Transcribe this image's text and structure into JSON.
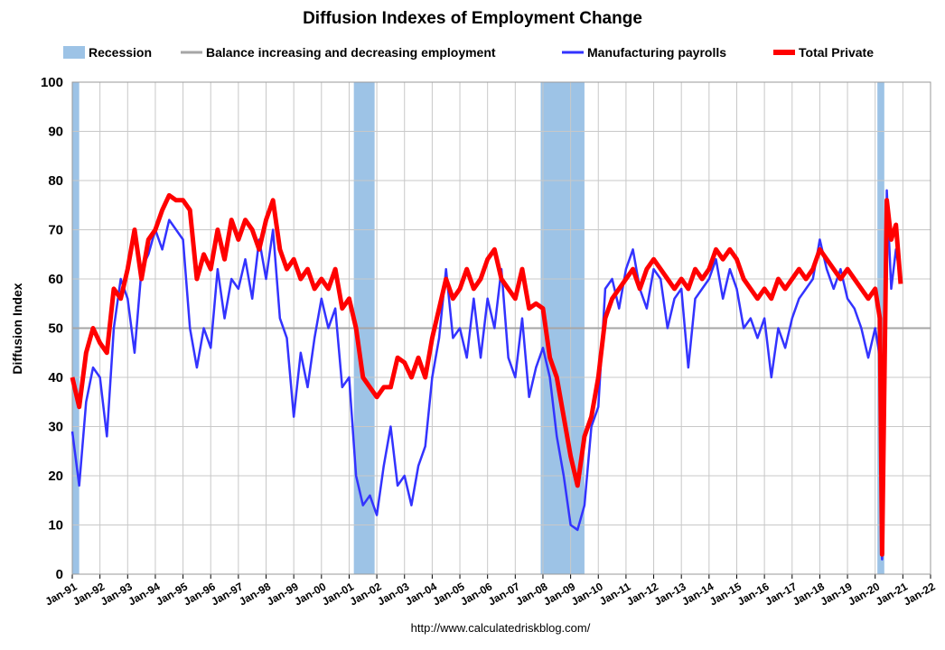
{
  "chart_data": {
    "type": "line",
    "title": "Diffusion Indexes of Employment Change",
    "ylabel": "Diffusion Index",
    "source": "http://www.calculatedriskblog.com/",
    "xlim": [
      1991,
      2022
    ],
    "xticks": [
      {
        "value": 1991,
        "label": "Jan-91"
      },
      {
        "value": 1992,
        "label": "Jan-92"
      },
      {
        "value": 1993,
        "label": "Jan-93"
      },
      {
        "value": 1994,
        "label": "Jan-94"
      },
      {
        "value": 1995,
        "label": "Jan-95"
      },
      {
        "value": 1996,
        "label": "Jan-96"
      },
      {
        "value": 1997,
        "label": "Jan-97"
      },
      {
        "value": 1998,
        "label": "Jan-98"
      },
      {
        "value": 1999,
        "label": "Jan-99"
      },
      {
        "value": 2000,
        "label": "Jan-00"
      },
      {
        "value": 2001,
        "label": "Jan-01"
      },
      {
        "value": 2002,
        "label": "Jan-02"
      },
      {
        "value": 2003,
        "label": "Jan-03"
      },
      {
        "value": 2004,
        "label": "Jan-04"
      },
      {
        "value": 2005,
        "label": "Jan-05"
      },
      {
        "value": 2006,
        "label": "Jan-06"
      },
      {
        "value": 2007,
        "label": "Jan-07"
      },
      {
        "value": 2008,
        "label": "Jan-08"
      },
      {
        "value": 2009,
        "label": "Jan-09"
      },
      {
        "value": 2010,
        "label": "Jan-10"
      },
      {
        "value": 2011,
        "label": "Jan-11"
      },
      {
        "value": 2012,
        "label": "Jan-12"
      },
      {
        "value": 2013,
        "label": "Jan-13"
      },
      {
        "value": 2014,
        "label": "Jan-14"
      },
      {
        "value": 2015,
        "label": "Jan-15"
      },
      {
        "value": 2016,
        "label": "Jan-16"
      },
      {
        "value": 2017,
        "label": "Jan-17"
      },
      {
        "value": 2018,
        "label": "Jan-18"
      },
      {
        "value": 2019,
        "label": "Jan-19"
      },
      {
        "value": 2020,
        "label": "Jan-20"
      },
      {
        "value": 2021,
        "label": "Jan-21"
      },
      {
        "value": 2022,
        "label": "Jan-22"
      }
    ],
    "ylim": [
      0,
      100
    ],
    "yticks": [
      0,
      10,
      20,
      30,
      40,
      50,
      60,
      70,
      80,
      90,
      100
    ],
    "grid": true,
    "recession": {
      "name": "Recession",
      "color": "#9dc3e6",
      "periods": [
        [
          1990.5,
          1991.25
        ],
        [
          2001.17,
          2001.92
        ],
        [
          2007.92,
          2009.5
        ],
        [
          2020.08,
          2020.33
        ]
      ]
    },
    "reference_line": {
      "name": "Balance increasing and decreasing employment",
      "value": 50,
      "color": "#a6a6a6"
    },
    "x": [
      1991,
      1991.25,
      1991.5,
      1991.75,
      1992,
      1992.25,
      1992.5,
      1992.75,
      1993,
      1993.25,
      1993.5,
      1993.75,
      1994,
      1994.25,
      1994.5,
      1994.75,
      1995,
      1995.25,
      1995.5,
      1995.75,
      1996,
      1996.25,
      1996.5,
      1996.75,
      1997,
      1997.25,
      1997.5,
      1997.75,
      1998,
      1998.25,
      1998.5,
      1998.75,
      1999,
      1999.25,
      1999.5,
      1999.75,
      2000,
      2000.25,
      2000.5,
      2000.75,
      2001,
      2001.25,
      2001.5,
      2001.75,
      2002,
      2002.25,
      2002.5,
      2002.75,
      2003,
      2003.25,
      2003.5,
      2003.75,
      2004,
      2004.25,
      2004.5,
      2004.75,
      2005,
      2005.25,
      2005.5,
      2005.75,
      2006,
      2006.25,
      2006.5,
      2006.75,
      2007,
      2007.25,
      2007.5,
      2007.75,
      2008,
      2008.25,
      2008.5,
      2008.75,
      2009,
      2009.25,
      2009.5,
      2009.75,
      2010,
      2010.25,
      2010.5,
      2010.75,
      2011,
      2011.25,
      2011.5,
      2011.75,
      2012,
      2012.25,
      2012.5,
      2012.75,
      2013,
      2013.25,
      2013.5,
      2013.75,
      2014,
      2014.25,
      2014.5,
      2014.75,
      2015,
      2015.25,
      2015.5,
      2015.75,
      2016,
      2016.25,
      2016.5,
      2016.75,
      2017,
      2017.25,
      2017.5,
      2017.75,
      2018,
      2018.25,
      2018.5,
      2018.75,
      2019,
      2019.25,
      2019.5,
      2019.75,
      2020,
      2020.17,
      2020.25,
      2020.42,
      2020.58,
      2020.75,
      2020.92
    ],
    "series": [
      {
        "name": "Manufacturing payrolls",
        "color": "#3333ff",
        "width": 2.5,
        "values": [
          29,
          18,
          35,
          42,
          40,
          28,
          50,
          60,
          56,
          45,
          62,
          65,
          70,
          66,
          72,
          70,
          68,
          50,
          42,
          50,
          46,
          62,
          52,
          60,
          58,
          64,
          56,
          68,
          60,
          70,
          52,
          48,
          32,
          45,
          38,
          48,
          56,
          50,
          54,
          38,
          40,
          20,
          14,
          16,
          12,
          22,
          30,
          18,
          20,
          14,
          22,
          26,
          40,
          48,
          62,
          48,
          50,
          44,
          56,
          44,
          56,
          50,
          62,
          44,
          40,
          52,
          36,
          42,
          46,
          40,
          28,
          20,
          10,
          9,
          14,
          30,
          34,
          58,
          60,
          54,
          62,
          66,
          58,
          54,
          62,
          60,
          50,
          56,
          58,
          42,
          56,
          58,
          60,
          64,
          56,
          62,
          58,
          50,
          52,
          48,
          52,
          40,
          50,
          46,
          52,
          56,
          58,
          60,
          68,
          62,
          58,
          62,
          56,
          54,
          50,
          44,
          50,
          44,
          3,
          78,
          58,
          66,
          60
        ]
      },
      {
        "name": "Total Private",
        "color": "#ff0000",
        "width": 5,
        "values": [
          40,
          34,
          45,
          50,
          47,
          45,
          58,
          56,
          62,
          70,
          60,
          68,
          70,
          74,
          77,
          76,
          76,
          74,
          60,
          65,
          62,
          70,
          64,
          72,
          68,
          72,
          70,
          66,
          72,
          76,
          66,
          62,
          64,
          60,
          62,
          58,
          60,
          58,
          62,
          54,
          56,
          50,
          40,
          38,
          36,
          38,
          38,
          44,
          43,
          40,
          44,
          40,
          48,
          54,
          60,
          56,
          58,
          62,
          58,
          60,
          64,
          66,
          60,
          58,
          56,
          62,
          54,
          55,
          54,
          44,
          40,
          32,
          24,
          18,
          28,
          32,
          40,
          52,
          56,
          58,
          60,
          62,
          58,
          62,
          64,
          62,
          60,
          58,
          60,
          58,
          62,
          60,
          62,
          66,
          64,
          66,
          64,
          60,
          58,
          56,
          58,
          56,
          60,
          58,
          60,
          62,
          60,
          62,
          66,
          64,
          62,
          60,
          62,
          60,
          58,
          56,
          58,
          52,
          4,
          76,
          68,
          71,
          59
        ]
      }
    ]
  }
}
